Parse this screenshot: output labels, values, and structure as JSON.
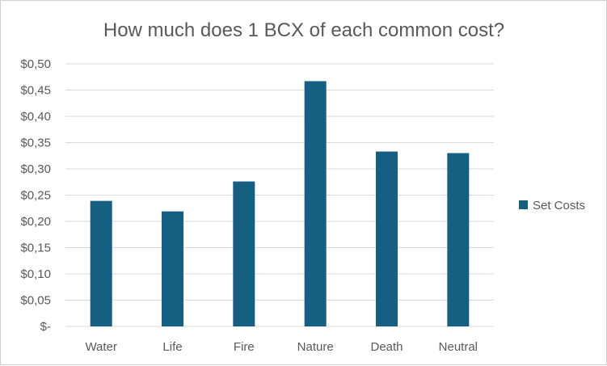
{
  "chart_data": {
    "type": "bar",
    "title": "How much does 1 BCX of each common cost?",
    "categories": [
      "Water",
      "Life",
      "Fire",
      "Nature",
      "Death",
      "Neutral"
    ],
    "series": [
      {
        "name": "Set Costs",
        "values": [
          0.239,
          0.219,
          0.276,
          0.467,
          0.333,
          0.33
        ]
      }
    ],
    "y_ticks": [
      "$-",
      "$0,05",
      "$0,10",
      "$0,15",
      "$0,20",
      "$0,25",
      "$0,30",
      "$0,35",
      "$0,40",
      "$0,45",
      "$0,50"
    ],
    "ylim": [
      0,
      0.5
    ],
    "grid": true,
    "legend_position": "right",
    "colors": {
      "bar": "#155f82",
      "grid": "#d9d9d9",
      "text": "#595959",
      "title": "#595959"
    }
  }
}
